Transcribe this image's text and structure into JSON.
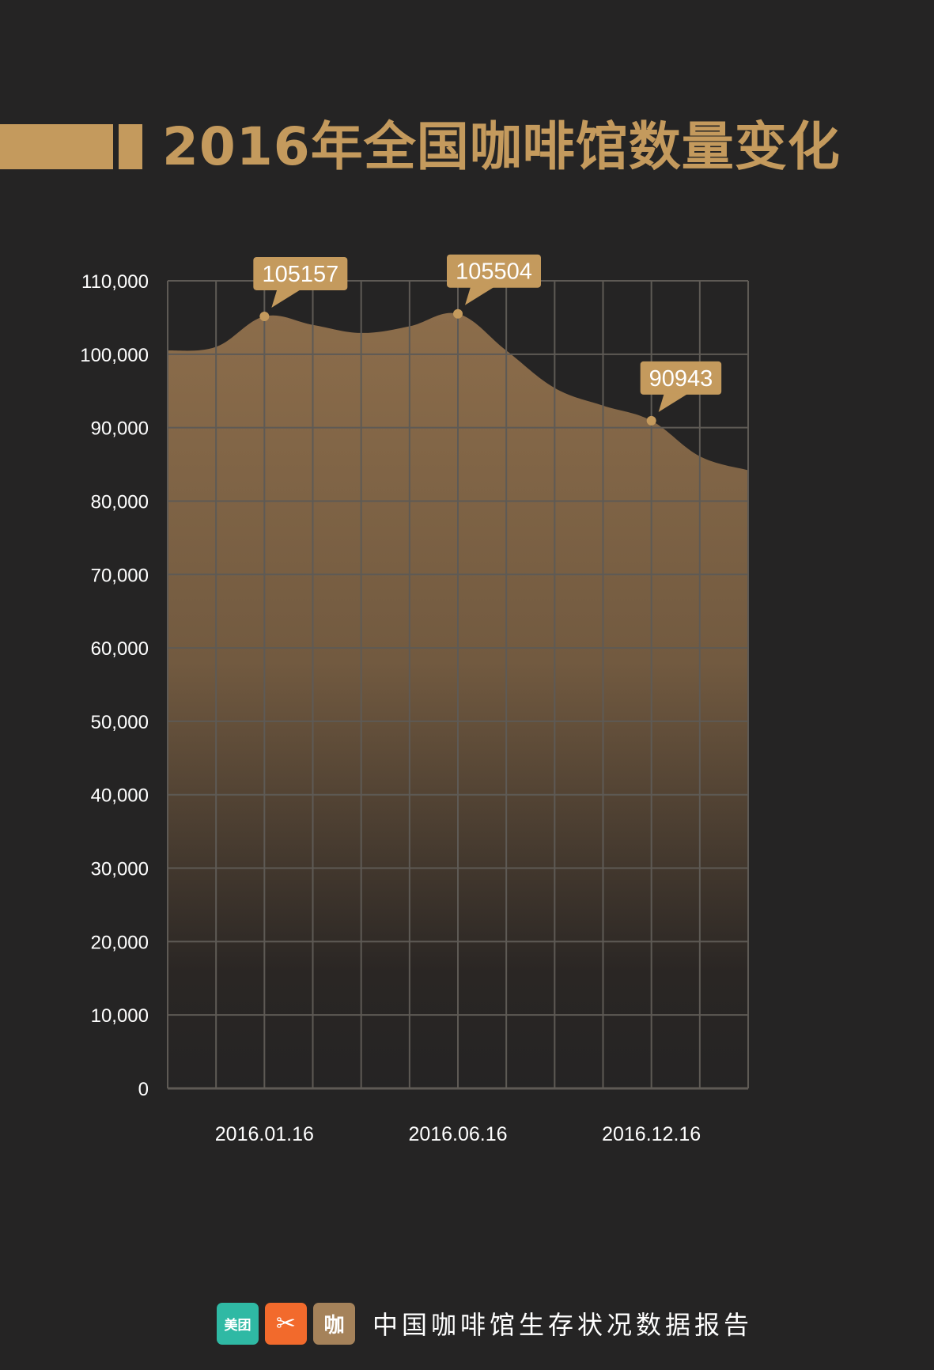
{
  "title": "2016年全国咖啡馆数量变化",
  "colors": {
    "background": "#252424",
    "accent": "#c49a5d",
    "grid": "#5e5a55",
    "label": "#ffffff"
  },
  "footer": {
    "logos": [
      {
        "name": "meituan-logo-icon",
        "text": "美团"
      },
      {
        "name": "dianping-logo-icon",
        "text": "✂"
      },
      {
        "name": "kafei-logo-icon",
        "text": "咖"
      }
    ],
    "text": "中国咖啡馆生存状况数据报告"
  },
  "chart_data": {
    "type": "area",
    "title": "",
    "xlabel": "",
    "ylabel": "",
    "ylim": [
      0,
      110000
    ],
    "yticks": [
      0,
      10000,
      20000,
      30000,
      40000,
      50000,
      60000,
      70000,
      80000,
      90000,
      100000,
      110000
    ],
    "ytick_labels": [
      "0",
      "10,000",
      "20,000",
      "30,000",
      "40,000",
      "50,000",
      "60,000",
      "70,000",
      "80,000",
      "90,000",
      "100,000",
      "110,000"
    ],
    "x_index_range": [
      0,
      12
    ],
    "xtick_labels": [
      {
        "index": 2,
        "label": "2016.01.16"
      },
      {
        "index": 6,
        "label": "2016.06.16"
      },
      {
        "index": 10,
        "label": "2016.12.16"
      }
    ],
    "grid": true,
    "series": [
      {
        "x": [
          0,
          1,
          2,
          3,
          4,
          5,
          6,
          7,
          8,
          9,
          10,
          11,
          12
        ],
        "values": [
          100500,
          101000,
          105157,
          104000,
          102900,
          103800,
          105504,
          100500,
          95400,
          93000,
          90943,
          86100,
          84200
        ]
      }
    ],
    "annotations": [
      {
        "index": 2,
        "value": 105157,
        "label": "105157"
      },
      {
        "index": 6,
        "value": 105504,
        "label": "105504"
      },
      {
        "index": 10,
        "value": 90943,
        "label": "90943"
      }
    ]
  }
}
